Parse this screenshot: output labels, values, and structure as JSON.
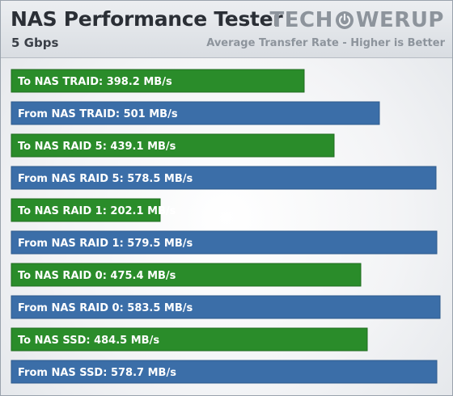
{
  "header": {
    "title": "NAS Performance Tester",
    "subtitle": "5 Gbps",
    "logo_left": "TECH",
    "logo_right": "WERUP",
    "caption": "Average Transfer Rate - Higher is Better"
  },
  "chart_data": {
    "type": "bar",
    "orientation": "horizontal",
    "unit": "MB/s",
    "categories": [
      "To NAS TRAID",
      "From NAS TRAID",
      "To NAS RAID 5",
      "From NAS RAID 5",
      "To NAS RAID 1",
      "From NAS RAID 1",
      "To NAS RAID 0",
      "From NAS RAID 0",
      "To NAS SSD",
      "From NAS SSD"
    ],
    "values": [
      398.2,
      501,
      439.1,
      578.5,
      202.1,
      579.5,
      475.4,
      583.5,
      484.5,
      578.7
    ],
    "labels": [
      "To NAS TRAID: 398.2 MB/s",
      "From NAS TRAID: 501 MB/s",
      "To NAS RAID 5: 439.1 MB/s",
      "From NAS RAID 5: 578.5 MB/s",
      "To NAS RAID 1: 202.1 MB/s",
      "From NAS RAID 1: 579.5 MB/s",
      "To NAS RAID 0: 475.4 MB/s",
      "From NAS RAID 0: 583.5 MB/s",
      "To NAS SSD: 484.5 MB/s",
      "From NAS SSD: 578.7 MB/s"
    ],
    "colors": {
      "to": "#2a8c2a",
      "from": "#3b6ea8"
    },
    "xlim": [
      0,
      583.5
    ],
    "grid": false,
    "legend": "none"
  }
}
